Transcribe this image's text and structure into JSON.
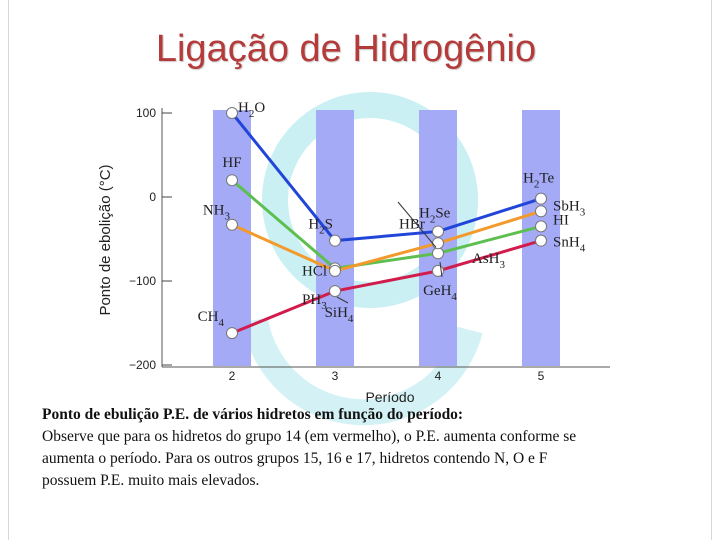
{
  "page": {
    "title": "Ligação de Hidrogênio",
    "caption_bold": "Ponto de ebulição P.E. de vários hidretos em função do período:",
    "caption_text": "Observe que para os hidretos do grupo 14 (em vermelho), o P.E. aumenta conforme se aumenta o período. Para os outros grupos 15, 16 e 17, hidretos contendo N, O e F possuem P.E. muito mais elevados."
  },
  "colors": {
    "title": "#b53a3a",
    "column": "#a4aaf6",
    "watermark": "#9fe3e9"
  },
  "chart_data": {
    "type": "line",
    "xlabel": "Período",
    "ylabel": "Ponto de ebolição (°C)",
    "x": [
      2,
      3,
      4,
      5
    ],
    "x_ticks": [
      "2",
      "3",
      "4",
      "5"
    ],
    "y_ticks": [
      "100",
      "0",
      "−100",
      "−200"
    ],
    "y_tick_values": [
      100,
      0,
      -100,
      -200
    ],
    "ylim": [
      -200,
      105
    ],
    "grid": false,
    "series": [
      {
        "color": "#2145d8",
        "values": [
          100,
          -52,
          -41,
          -2
        ],
        "labels": [
          {
            "main": "H",
            "sub": "2",
            "rest": "O"
          },
          {
            "main": "H",
            "sub": "2",
            "rest": "S"
          },
          {
            "main": "H",
            "sub": "2",
            "rest": "Se"
          },
          {
            "main": "H",
            "sub": "2",
            "rest": "Te"
          }
        ]
      },
      {
        "color": "#5dbf4f",
        "values": [
          20,
          -85,
          -67,
          -35
        ],
        "labels": [
          {
            "main": "HF",
            "sub": "",
            "rest": ""
          },
          {
            "main": "HCl",
            "sub": "",
            "rest": ""
          },
          {
            "main": "HBr",
            "sub": "",
            "rest": ""
          },
          {
            "main": "HI",
            "sub": "",
            "rest": ""
          }
        ]
      },
      {
        "color": "#f39a2c",
        "values": [
          -33,
          -88,
          -55,
          -17
        ],
        "labels": [
          {
            "main": "NH",
            "sub": "3",
            "rest": ""
          },
          {
            "main": "PH",
            "sub": "3",
            "rest": ""
          },
          {
            "main": "AsH",
            "sub": "3",
            "rest": ""
          },
          {
            "main": "SbH",
            "sub": "3",
            "rest": ""
          }
        ]
      },
      {
        "color": "#d21c4c",
        "values": [
          -162,
          -112,
          -88,
          -52
        ],
        "labels": [
          {
            "main": "CH",
            "sub": "4",
            "rest": ""
          },
          {
            "main": "SiH",
            "sub": "4",
            "rest": ""
          },
          {
            "main": "GeH",
            "sub": "4",
            "rest": ""
          },
          {
            "main": "SnH",
            "sub": "4",
            "rest": ""
          }
        ]
      }
    ]
  }
}
